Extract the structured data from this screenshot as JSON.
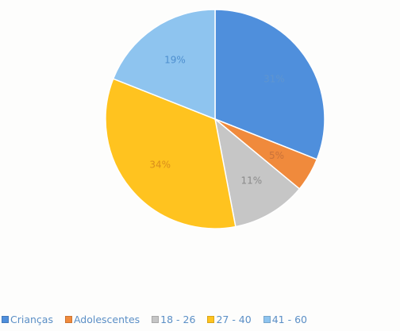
{
  "chart_data": {
    "type": "pie",
    "title": "",
    "series": [
      {
        "name": "Crianças",
        "value": 31,
        "label": "31%",
        "color": "#4f8fdc",
        "label_color": "#5f95cf"
      },
      {
        "name": "Adolescentes",
        "value": 5,
        "label": "5%",
        "color": "#f08a3c",
        "label_color": "#c9723a"
      },
      {
        "name": "18 - 26",
        "value": 11,
        "label": "11%",
        "color": "#c6c6c6",
        "label_color": "#8a8a8a"
      },
      {
        "name": "27 - 40",
        "value": 34,
        "label": "34%",
        "color": "#ffc31f",
        "label_color": "#d98e1c"
      },
      {
        "name": "41 - 60",
        "value": 19,
        "label": "19%",
        "color": "#8ec4ef",
        "label_color": "#4e8fcf"
      }
    ],
    "legend_position": "bottom"
  },
  "legend": {
    "items": [
      "Crianças",
      "Adolescentes",
      "18 - 26",
      "27 - 40",
      "41 - 60"
    ]
  }
}
